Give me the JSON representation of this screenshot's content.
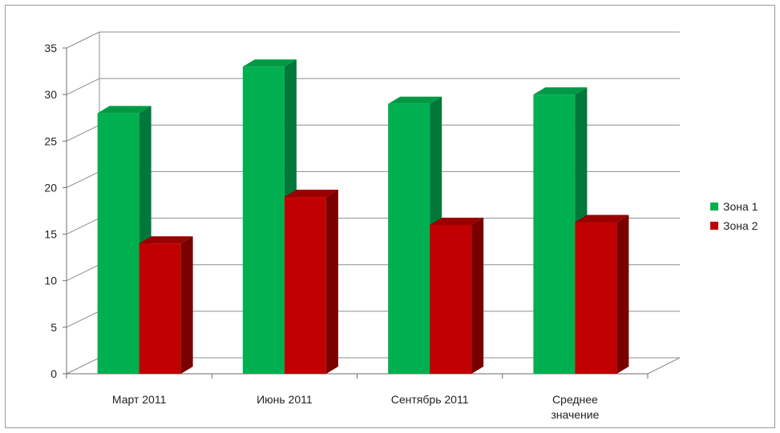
{
  "chart_data": {
    "type": "bar",
    "style": "3d-clustered-column",
    "categories": [
      "Март 2011",
      "Июнь 2011",
      "Сентябрь 2011",
      "Среднее значение"
    ],
    "category_lines": [
      [
        "Март 2011"
      ],
      [
        "Июнь 2011"
      ],
      [
        "Сентябрь 2011"
      ],
      [
        "Среднее",
        "значение"
      ]
    ],
    "series": [
      {
        "name": "Зона 1",
        "values": [
          28,
          33,
          29,
          30
        ],
        "color": "#00b050",
        "side_color": "#00783a",
        "top_color": "#009a45"
      },
      {
        "name": "Зона 2",
        "values": [
          14,
          19,
          16,
          16.3
        ],
        "color": "#c00000",
        "side_color": "#7a0000",
        "top_color": "#9a0000"
      }
    ],
    "yticks": [
      0,
      5,
      10,
      15,
      20,
      25,
      30,
      35
    ],
    "ylim": [
      0,
      35
    ],
    "grid": true,
    "legend": "right"
  }
}
